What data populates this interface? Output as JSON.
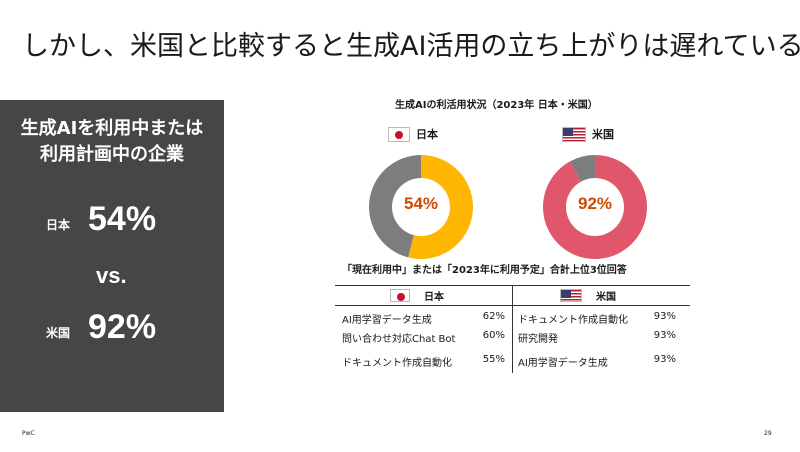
{
  "title": "しかし、米国と比較すると生成AI活用の立ち上がりは遅れている",
  "summary": {
    "heading_line1": "生成AIを利用中または",
    "heading_line2": "利用計画中の企業",
    "japan_label": "日本",
    "japan_value": "54%",
    "vs": "vs.",
    "us_label": "米国",
    "us_value": "92%"
  },
  "chart_section_title": "生成AIの利活用状況（2023年 日本・米国）",
  "chart_data": [
    {
      "type": "pie",
      "series_label": "日本",
      "values": [
        54,
        46
      ],
      "center_label": "54%",
      "colors": [
        "#FFB600",
        "#7D7D7D"
      ]
    },
    {
      "type": "pie",
      "series_label": "米国",
      "values": [
        92,
        8
      ],
      "center_label": "92%",
      "colors": [
        "#E0566A",
        "#7D7D7D"
      ]
    }
  ],
  "colors": {
    "japan_accent": "#FFB600",
    "us_accent": "#E0566A",
    "remainder": "#7D7D7D",
    "label_orange": "#D04A02",
    "panel_bg": "#464646"
  },
  "top3": {
    "title": "「現在利用中」または「2023年に利用予定」合計上位3位回答",
    "japan": {
      "header": "日本",
      "items": [
        {
          "name": "AI用学習データ生成",
          "value": "62%"
        },
        {
          "name": "問い合わせ対応Chat Bot",
          "value": "60%"
        },
        {
          "name": "ドキュメント作成自動化",
          "value": "55%"
        }
      ]
    },
    "us": {
      "header": "米国",
      "items": [
        {
          "name": "ドキュメント作成自動化",
          "value": "93%"
        },
        {
          "name": "研究開発",
          "value": "93%"
        },
        {
          "name": "AI用学習データ生成",
          "value": "93%"
        }
      ]
    }
  },
  "footer": {
    "brand": "PwC",
    "page": "29"
  }
}
